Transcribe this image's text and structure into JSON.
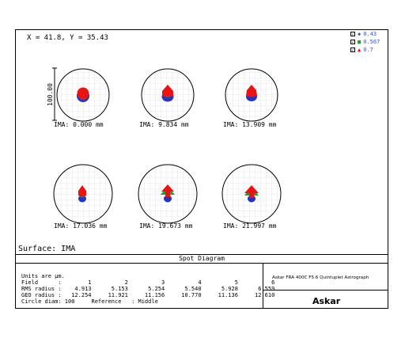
{
  "coordinate_readout": "X = 41.8, Y = 35.43",
  "legend": [
    {
      "checked": true,
      "symbol": "◆",
      "color": "#3a5ab8",
      "value": "0.43"
    },
    {
      "checked": true,
      "symbol": "■",
      "color": "#2e9a2e",
      "value": "0.567"
    },
    {
      "checked": true,
      "symbol": "▲",
      "color": "#e01010",
      "value": "0.7"
    }
  ],
  "scale_label": "100.00",
  "surface_label": "Surface: IMA",
  "panel_title": "Spot Diagram",
  "spots": [
    {
      "label": "IMA: 0.000 mm"
    },
    {
      "label": "IMA: 9.834 mm"
    },
    {
      "label": "IMA: 13.909 mm"
    },
    {
      "label": "IMA: 17.036 mm"
    },
    {
      "label": "IMA: 19.673 mm"
    },
    {
      "label": "IMA: 21.997 mm"
    }
  ],
  "info": {
    "units": "Units are µm.",
    "field_row": "Field      :        1          2          3          4          5          6",
    "rms_row": "RMS radius :    4.913      5.153      5.254      5.540      5.928      6.559",
    "geo_row": "GEO radius :   12.254     11.921     11.156     10.770     11.136     12.610",
    "circle_row": "Circle diam: 100     Reference   : Middle"
  },
  "system_name": "Askar FRA 400C F5.6 Quintuplet Astrograph",
  "brand": "Askar"
}
